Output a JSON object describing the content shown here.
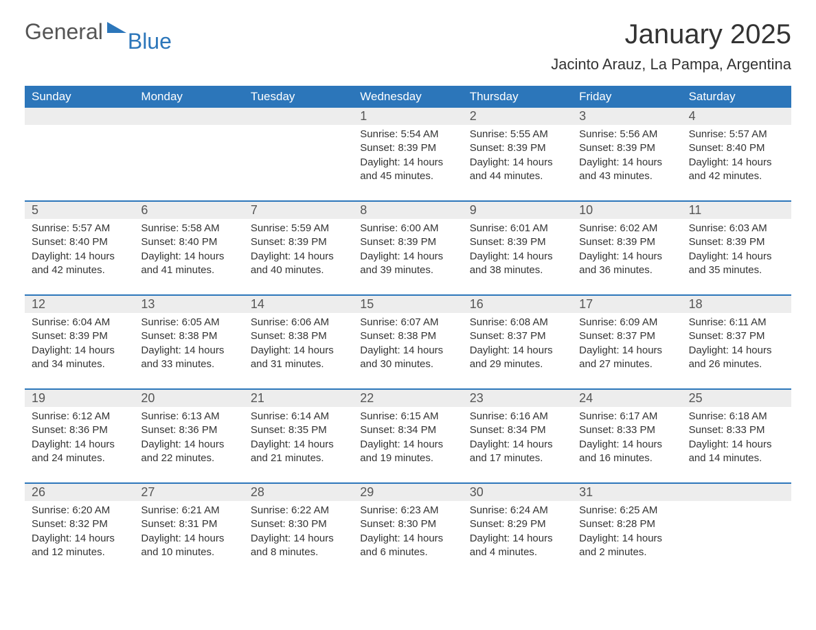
{
  "logo": {
    "general": "General",
    "blue": "Blue",
    "flag_color": "#2c76ba"
  },
  "title": "January 2025",
  "location": "Jacinto Arauz, La Pampa, Argentina",
  "colors": {
    "header_bg": "#2c76ba",
    "header_text": "#ffffff",
    "daynum_bg": "#ededed",
    "daynum_text": "#555555",
    "body_text": "#333333",
    "row_rule": "#2c76ba",
    "page_bg": "#ffffff"
  },
  "day_names": [
    "Sunday",
    "Monday",
    "Tuesday",
    "Wednesday",
    "Thursday",
    "Friday",
    "Saturday"
  ],
  "weeks": [
    [
      null,
      null,
      null,
      {
        "n": "1",
        "sunrise": "Sunrise: 5:54 AM",
        "sunset": "Sunset: 8:39 PM",
        "d1": "Daylight: 14 hours",
        "d2": "and 45 minutes."
      },
      {
        "n": "2",
        "sunrise": "Sunrise: 5:55 AM",
        "sunset": "Sunset: 8:39 PM",
        "d1": "Daylight: 14 hours",
        "d2": "and 44 minutes."
      },
      {
        "n": "3",
        "sunrise": "Sunrise: 5:56 AM",
        "sunset": "Sunset: 8:39 PM",
        "d1": "Daylight: 14 hours",
        "d2": "and 43 minutes."
      },
      {
        "n": "4",
        "sunrise": "Sunrise: 5:57 AM",
        "sunset": "Sunset: 8:40 PM",
        "d1": "Daylight: 14 hours",
        "d2": "and 42 minutes."
      }
    ],
    [
      {
        "n": "5",
        "sunrise": "Sunrise: 5:57 AM",
        "sunset": "Sunset: 8:40 PM",
        "d1": "Daylight: 14 hours",
        "d2": "and 42 minutes."
      },
      {
        "n": "6",
        "sunrise": "Sunrise: 5:58 AM",
        "sunset": "Sunset: 8:40 PM",
        "d1": "Daylight: 14 hours",
        "d2": "and 41 minutes."
      },
      {
        "n": "7",
        "sunrise": "Sunrise: 5:59 AM",
        "sunset": "Sunset: 8:39 PM",
        "d1": "Daylight: 14 hours",
        "d2": "and 40 minutes."
      },
      {
        "n": "8",
        "sunrise": "Sunrise: 6:00 AM",
        "sunset": "Sunset: 8:39 PM",
        "d1": "Daylight: 14 hours",
        "d2": "and 39 minutes."
      },
      {
        "n": "9",
        "sunrise": "Sunrise: 6:01 AM",
        "sunset": "Sunset: 8:39 PM",
        "d1": "Daylight: 14 hours",
        "d2": "and 38 minutes."
      },
      {
        "n": "10",
        "sunrise": "Sunrise: 6:02 AM",
        "sunset": "Sunset: 8:39 PM",
        "d1": "Daylight: 14 hours",
        "d2": "and 36 minutes."
      },
      {
        "n": "11",
        "sunrise": "Sunrise: 6:03 AM",
        "sunset": "Sunset: 8:39 PM",
        "d1": "Daylight: 14 hours",
        "d2": "and 35 minutes."
      }
    ],
    [
      {
        "n": "12",
        "sunrise": "Sunrise: 6:04 AM",
        "sunset": "Sunset: 8:39 PM",
        "d1": "Daylight: 14 hours",
        "d2": "and 34 minutes."
      },
      {
        "n": "13",
        "sunrise": "Sunrise: 6:05 AM",
        "sunset": "Sunset: 8:38 PM",
        "d1": "Daylight: 14 hours",
        "d2": "and 33 minutes."
      },
      {
        "n": "14",
        "sunrise": "Sunrise: 6:06 AM",
        "sunset": "Sunset: 8:38 PM",
        "d1": "Daylight: 14 hours",
        "d2": "and 31 minutes."
      },
      {
        "n": "15",
        "sunrise": "Sunrise: 6:07 AM",
        "sunset": "Sunset: 8:38 PM",
        "d1": "Daylight: 14 hours",
        "d2": "and 30 minutes."
      },
      {
        "n": "16",
        "sunrise": "Sunrise: 6:08 AM",
        "sunset": "Sunset: 8:37 PM",
        "d1": "Daylight: 14 hours",
        "d2": "and 29 minutes."
      },
      {
        "n": "17",
        "sunrise": "Sunrise: 6:09 AM",
        "sunset": "Sunset: 8:37 PM",
        "d1": "Daylight: 14 hours",
        "d2": "and 27 minutes."
      },
      {
        "n": "18",
        "sunrise": "Sunrise: 6:11 AM",
        "sunset": "Sunset: 8:37 PM",
        "d1": "Daylight: 14 hours",
        "d2": "and 26 minutes."
      }
    ],
    [
      {
        "n": "19",
        "sunrise": "Sunrise: 6:12 AM",
        "sunset": "Sunset: 8:36 PM",
        "d1": "Daylight: 14 hours",
        "d2": "and 24 minutes."
      },
      {
        "n": "20",
        "sunrise": "Sunrise: 6:13 AM",
        "sunset": "Sunset: 8:36 PM",
        "d1": "Daylight: 14 hours",
        "d2": "and 22 minutes."
      },
      {
        "n": "21",
        "sunrise": "Sunrise: 6:14 AM",
        "sunset": "Sunset: 8:35 PM",
        "d1": "Daylight: 14 hours",
        "d2": "and 21 minutes."
      },
      {
        "n": "22",
        "sunrise": "Sunrise: 6:15 AM",
        "sunset": "Sunset: 8:34 PM",
        "d1": "Daylight: 14 hours",
        "d2": "and 19 minutes."
      },
      {
        "n": "23",
        "sunrise": "Sunrise: 6:16 AM",
        "sunset": "Sunset: 8:34 PM",
        "d1": "Daylight: 14 hours",
        "d2": "and 17 minutes."
      },
      {
        "n": "24",
        "sunrise": "Sunrise: 6:17 AM",
        "sunset": "Sunset: 8:33 PM",
        "d1": "Daylight: 14 hours",
        "d2": "and 16 minutes."
      },
      {
        "n": "25",
        "sunrise": "Sunrise: 6:18 AM",
        "sunset": "Sunset: 8:33 PM",
        "d1": "Daylight: 14 hours",
        "d2": "and 14 minutes."
      }
    ],
    [
      {
        "n": "26",
        "sunrise": "Sunrise: 6:20 AM",
        "sunset": "Sunset: 8:32 PM",
        "d1": "Daylight: 14 hours",
        "d2": "and 12 minutes."
      },
      {
        "n": "27",
        "sunrise": "Sunrise: 6:21 AM",
        "sunset": "Sunset: 8:31 PM",
        "d1": "Daylight: 14 hours",
        "d2": "and 10 minutes."
      },
      {
        "n": "28",
        "sunrise": "Sunrise: 6:22 AM",
        "sunset": "Sunset: 8:30 PM",
        "d1": "Daylight: 14 hours",
        "d2": "and 8 minutes."
      },
      {
        "n": "29",
        "sunrise": "Sunrise: 6:23 AM",
        "sunset": "Sunset: 8:30 PM",
        "d1": "Daylight: 14 hours",
        "d2": "and 6 minutes."
      },
      {
        "n": "30",
        "sunrise": "Sunrise: 6:24 AM",
        "sunset": "Sunset: 8:29 PM",
        "d1": "Daylight: 14 hours",
        "d2": "and 4 minutes."
      },
      {
        "n": "31",
        "sunrise": "Sunrise: 6:25 AM",
        "sunset": "Sunset: 8:28 PM",
        "d1": "Daylight: 14 hours",
        "d2": "and 2 minutes."
      },
      null
    ]
  ]
}
